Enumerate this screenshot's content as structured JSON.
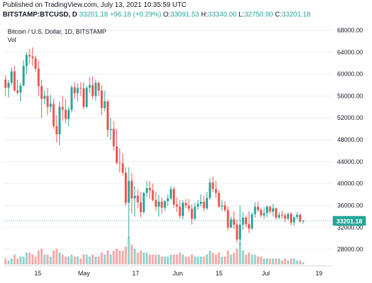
{
  "header": {
    "published": "Published on TradingView.com, July 13, 2021 10:35:59 UTC",
    "symbol": "BITSTAMP:BTCUSD, D",
    "last": "33201.18",
    "change": "+96.18 (+0.29%)",
    "o_label": "O:",
    "o_value": "33091.53",
    "h_label": "H:",
    "h_value": "33340.00",
    "l_label": "L:",
    "l_value": "32750.00",
    "c_label": "C:",
    "c_value": "33201.18"
  },
  "colors": {
    "up": "#26a69a",
    "down": "#ef5350",
    "vol_up": "#8fd3cc",
    "vol_down": "#f5a9a8",
    "grid": "#eceef2",
    "axis_text": "#131722",
    "price_tag": "#26a69a"
  },
  "chart_data": {
    "type": "candlestick",
    "title": "Bitcoin / U.S. Dollar, 1D, BITSTAMP",
    "volume_label": "Vol",
    "ylim": [
      25000,
      69500
    ],
    "y_ticks": [
      "68000.00",
      "64000.00",
      "60000.00",
      "56000.00",
      "52000.00",
      "48000.00",
      "44000.00",
      "40000.00",
      "36000.00",
      "32000.00",
      "28000.00"
    ],
    "x_ticks": [
      "15",
      "May",
      "17",
      "Jun",
      "15",
      "Jul",
      "19"
    ],
    "last_price_label": "33201.18",
    "last_price": 33201.18,
    "candles": [
      [
        59000,
        59800,
        56000,
        57500,
        3
      ],
      [
        57500,
        58900,
        55800,
        58400,
        2
      ],
      [
        58400,
        61200,
        58000,
        60500,
        3
      ],
      [
        60500,
        61500,
        56800,
        57000,
        5
      ],
      [
        57000,
        59000,
        56200,
        56600,
        3
      ],
      [
        56600,
        58400,
        55000,
        57900,
        4
      ],
      [
        57900,
        62500,
        57800,
        61500,
        4
      ],
      [
        61500,
        64000,
        60000,
        63500,
        6
      ],
      [
        63500,
        64600,
        62000,
        63200,
        6
      ],
      [
        63200,
        64900,
        61500,
        62900,
        5
      ],
      [
        62900,
        63400,
        60500,
        61000,
        4
      ],
      [
        61000,
        62500,
        56000,
        57800,
        7
      ],
      [
        57800,
        59000,
        52000,
        55500,
        8
      ],
      [
        55500,
        57000,
        54500,
        56000,
        5
      ],
      [
        56000,
        57500,
        52500,
        54000,
        5
      ],
      [
        54000,
        56200,
        53000,
        54600,
        4
      ],
      [
        54600,
        55500,
        50000,
        50500,
        7
      ],
      [
        50500,
        52500,
        47500,
        49000,
        8
      ],
      [
        49000,
        55000,
        47000,
        54000,
        6
      ],
      [
        54000,
        56000,
        51500,
        53500,
        5
      ],
      [
        53500,
        55500,
        51000,
        51800,
        4
      ],
      [
        51800,
        54000,
        50500,
        53500,
        4
      ],
      [
        53500,
        58000,
        53000,
        57600,
        5
      ],
      [
        57600,
        58500,
        55500,
        56500,
        4
      ],
      [
        56500,
        58300,
        55000,
        57500,
        4
      ],
      [
        57500,
        58500,
        56000,
        57400,
        3
      ],
      [
        57400,
        58500,
        53600,
        54000,
        5
      ],
      [
        54000,
        57800,
        53800,
        57500,
        5
      ],
      [
        57500,
        59500,
        56500,
        58000,
        4
      ],
      [
        58000,
        59600,
        55500,
        56000,
        5
      ],
      [
        56000,
        59000,
        55200,
        58400,
        4
      ],
      [
        58400,
        58600,
        56000,
        57000,
        4
      ],
      [
        57000,
        58000,
        52500,
        53800,
        6
      ],
      [
        53800,
        57000,
        53200,
        55000,
        5
      ],
      [
        55000,
        55300,
        48500,
        49800,
        7
      ],
      [
        49800,
        52000,
        48000,
        50000,
        5
      ],
      [
        50000,
        51400,
        46000,
        46800,
        7
      ],
      [
        46800,
        50000,
        43500,
        43800,
        8
      ],
      [
        43800,
        46500,
        42000,
        43700,
        7
      ],
      [
        43700,
        45500,
        41500,
        42000,
        7
      ],
      [
        42000,
        43000,
        36000,
        36500,
        9
      ],
      [
        36500,
        43000,
        30000,
        40500,
        14
      ],
      [
        40500,
        42000,
        34500,
        37300,
        10
      ],
      [
        37300,
        39500,
        34000,
        37800,
        8
      ],
      [
        37800,
        39000,
        35500,
        36600,
        6
      ],
      [
        36600,
        38500,
        33800,
        34800,
        7
      ],
      [
        34800,
        38500,
        34500,
        38300,
        6
      ],
      [
        38300,
        40500,
        37500,
        39200,
        6
      ],
      [
        39200,
        40500,
        37200,
        38800,
        5
      ],
      [
        38800,
        40000,
        36700,
        37000,
        5
      ],
      [
        37000,
        38500,
        35000,
        35800,
        5
      ],
      [
        35800,
        38000,
        34000,
        36700,
        5
      ],
      [
        36700,
        37500,
        34500,
        35600,
        4
      ],
      [
        35600,
        37000,
        35000,
        36800,
        4
      ],
      [
        36800,
        38000,
        36000,
        37300,
        4
      ],
      [
        37300,
        39500,
        37000,
        39000,
        5
      ],
      [
        39000,
        39400,
        35600,
        36200,
        5
      ],
      [
        36200,
        37500,
        34800,
        35800,
        5
      ],
      [
        35800,
        37000,
        33600,
        34100,
        6
      ],
      [
        34100,
        37000,
        33500,
        36500,
        5
      ],
      [
        36500,
        37200,
        35500,
        36000,
        4
      ],
      [
        36000,
        37200,
        34800,
        35400,
        4
      ],
      [
        35400,
        36200,
        32500,
        33600,
        5
      ],
      [
        33600,
        36500,
        33300,
        35800,
        4
      ],
      [
        35800,
        37000,
        35200,
        36300,
        4
      ],
      [
        36300,
        38000,
        35800,
        36700,
        4
      ],
      [
        36700,
        37800,
        35000,
        35500,
        4
      ],
      [
        35500,
        38500,
        35200,
        37400,
        5
      ],
      [
        37400,
        41000,
        37000,
        40200,
        7
      ],
      [
        40200,
        41300,
        38500,
        39000,
        6
      ],
      [
        39000,
        40500,
        37400,
        38300,
        5
      ],
      [
        38300,
        38800,
        35600,
        35800,
        6
      ],
      [
        35800,
        37000,
        35000,
        36000,
        4
      ],
      [
        36000,
        36800,
        34800,
        35200,
        4
      ],
      [
        35200,
        35800,
        31500,
        32000,
        7
      ],
      [
        32000,
        34000,
        31800,
        33500,
        5
      ],
      [
        33500,
        35000,
        31700,
        32500,
        6
      ],
      [
        32500,
        33500,
        29300,
        29800,
        8
      ],
      [
        29800,
        36000,
        28800,
        32500,
        11
      ],
      [
        32500,
        34800,
        31500,
        33800,
        7
      ],
      [
        33800,
        34200,
        32000,
        32600,
        5
      ],
      [
        32600,
        35000,
        31000,
        31800,
        6
      ],
      [
        31800,
        34800,
        31500,
        34400,
        5
      ],
      [
        34400,
        36600,
        33800,
        35800,
        5
      ],
      [
        35800,
        36700,
        34800,
        35200,
        4
      ],
      [
        35200,
        35600,
        33800,
        34200,
        4
      ],
      [
        34200,
        35700,
        33600,
        34600,
        3
      ],
      [
        34600,
        36000,
        33900,
        35800,
        3
      ],
      [
        35800,
        35900,
        34500,
        34900,
        3
      ],
      [
        34900,
        36300,
        34000,
        35500,
        3
      ],
      [
        35500,
        35600,
        33400,
        33800,
        3
      ],
      [
        33800,
        34800,
        33500,
        34300,
        3
      ],
      [
        34300,
        35100,
        33600,
        34200,
        2
      ],
      [
        34200,
        34600,
        33000,
        33600,
        3
      ],
      [
        33600,
        34700,
        33300,
        34500,
        2
      ],
      [
        34500,
        34800,
        32400,
        32900,
        3
      ],
      [
        32900,
        34000,
        32200,
        33900,
        3
      ],
      [
        33900,
        34800,
        33500,
        34300,
        2
      ],
      [
        34300,
        34600,
        32800,
        33100,
        2
      ],
      [
        33100,
        33400,
        32700,
        33200,
        1
      ]
    ]
  }
}
